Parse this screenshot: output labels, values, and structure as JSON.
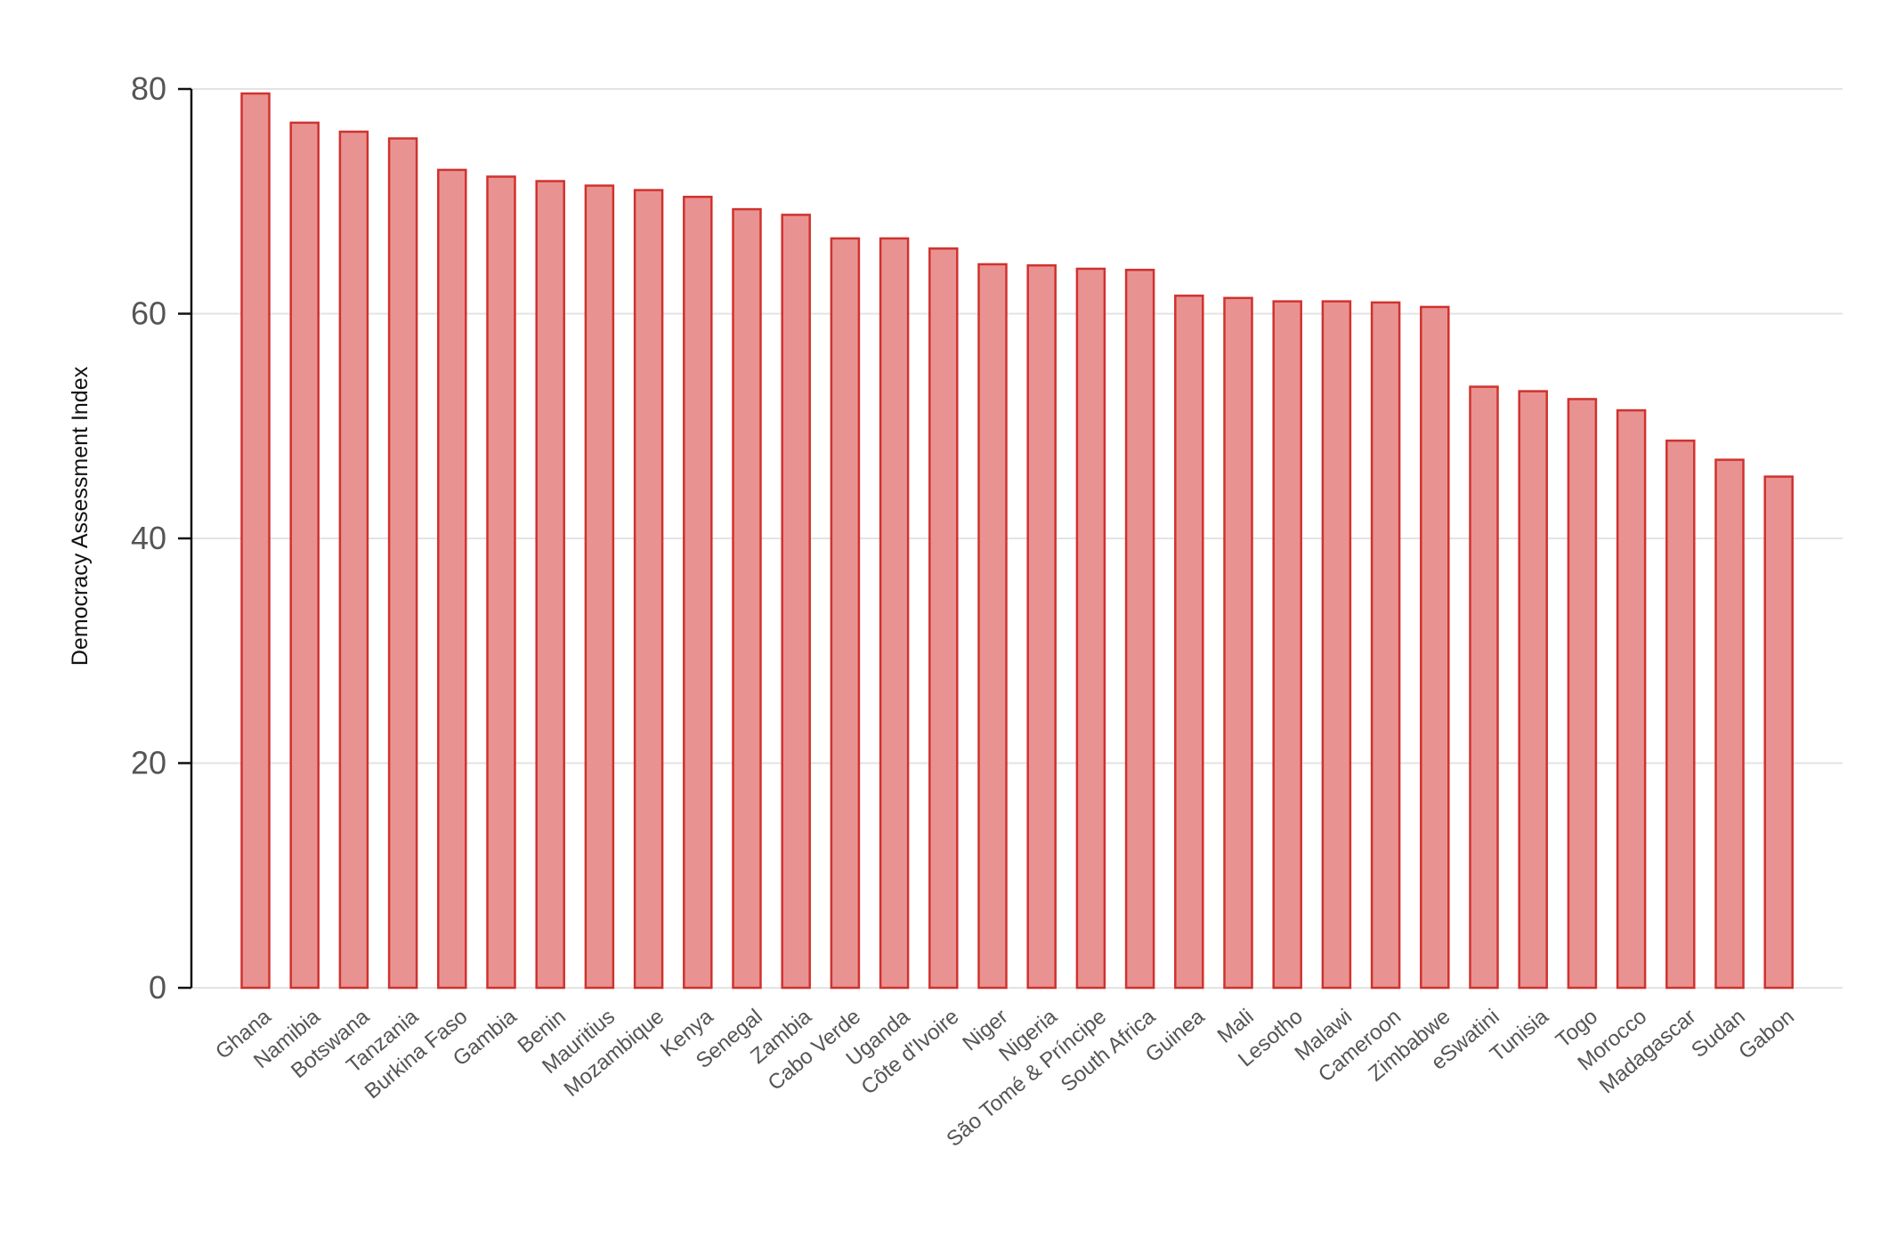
{
  "chart_data": {
    "type": "bar",
    "title": "",
    "xlabel": "",
    "ylabel": "Democracy Assessment Index",
    "ylim": [
      0,
      80
    ],
    "yticks": [
      0,
      20,
      40,
      60,
      80
    ],
    "grid": true,
    "legend": "none",
    "categories": [
      "Ghana",
      "Namibia",
      "Botswana",
      "Tanzania",
      "Burkina Faso",
      "Gambia",
      "Benin",
      "Mauritius",
      "Mozambique",
      "Kenya",
      "Senegal",
      "Zambia",
      "Cabo Verde",
      "Uganda",
      "Côte d'Ivoire",
      "Niger",
      "Nigeria",
      "São Tomé & Príncipe",
      "South Africa",
      "Guinea",
      "Mali",
      "Lesotho",
      "Malawi",
      "Cameroon",
      "Zimbabwe",
      "eSwatini",
      "Tunisia",
      "Togo",
      "Morocco",
      "Madagascar",
      "Sudan",
      "Gabon"
    ],
    "values": [
      79.6,
      77.0,
      76.2,
      75.6,
      72.8,
      72.2,
      71.8,
      71.4,
      71.0,
      70.4,
      69.3,
      68.8,
      66.7,
      66.7,
      65.8,
      64.4,
      64.3,
      64.0,
      63.9,
      61.6,
      61.4,
      61.1,
      61.1,
      61.0,
      60.6,
      53.5,
      53.1,
      52.4,
      51.4,
      48.7,
      47.0,
      45.5
    ],
    "colors": {
      "bar_fill": "#e89391",
      "bar_stroke": "#d0322f",
      "grid": "#e3e3e3",
      "axis": "#111111",
      "tick_label": "#555555"
    }
  }
}
